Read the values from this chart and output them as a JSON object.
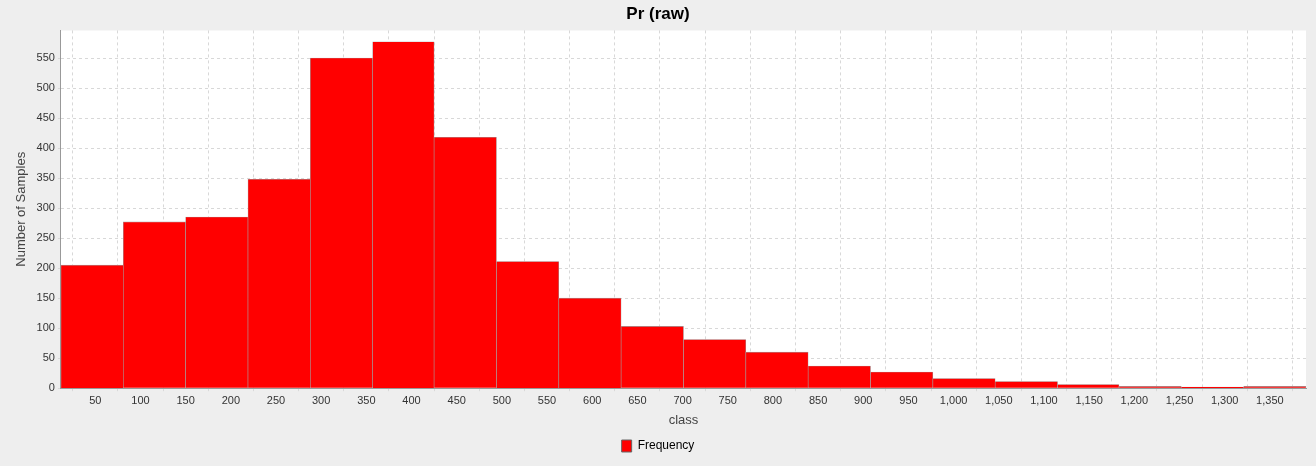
{
  "chart_data": {
    "type": "histogram",
    "title": "Pr (raw)",
    "xlabel": "class",
    "ylabel": "Number of Samples",
    "bins": [
      12,
      81,
      150,
      219,
      288,
      357,
      425,
      494,
      563,
      632,
      701,
      770,
      839,
      908,
      977,
      1046,
      1115,
      1183,
      1252,
      1321,
      1390
    ],
    "series": [
      {
        "name": "Frequency",
        "color": "#ff0000",
        "values": [
          205,
          277,
          285,
          348,
          550,
          577,
          418,
          211,
          150,
          103,
          81,
          60,
          37,
          27,
          16,
          11,
          6,
          3,
          2,
          3
        ]
      }
    ],
    "xlim": [
      12,
      1390
    ],
    "xticks": [
      50,
      100,
      150,
      200,
      250,
      300,
      350,
      400,
      450,
      500,
      550,
      600,
      650,
      700,
      750,
      800,
      850,
      900,
      950,
      {
        "value": 1000,
        "label": "1,000"
      },
      {
        "value": 1050,
        "label": "1,050"
      },
      {
        "value": 1100,
        "label": "1,100"
      },
      {
        "value": 1150,
        "label": "1,150"
      },
      {
        "value": 1200,
        "label": "1,200"
      },
      {
        "value": 1250,
        "label": "1,250"
      },
      {
        "value": 1300,
        "label": "1,300"
      },
      {
        "value": 1350,
        "label": "1,350"
      }
    ],
    "ylim": [
      0,
      596
    ],
    "yticks": [
      0,
      50,
      100,
      150,
      200,
      250,
      300,
      350,
      400,
      450,
      500,
      550
    ],
    "grid": true,
    "legend": "bottom"
  }
}
